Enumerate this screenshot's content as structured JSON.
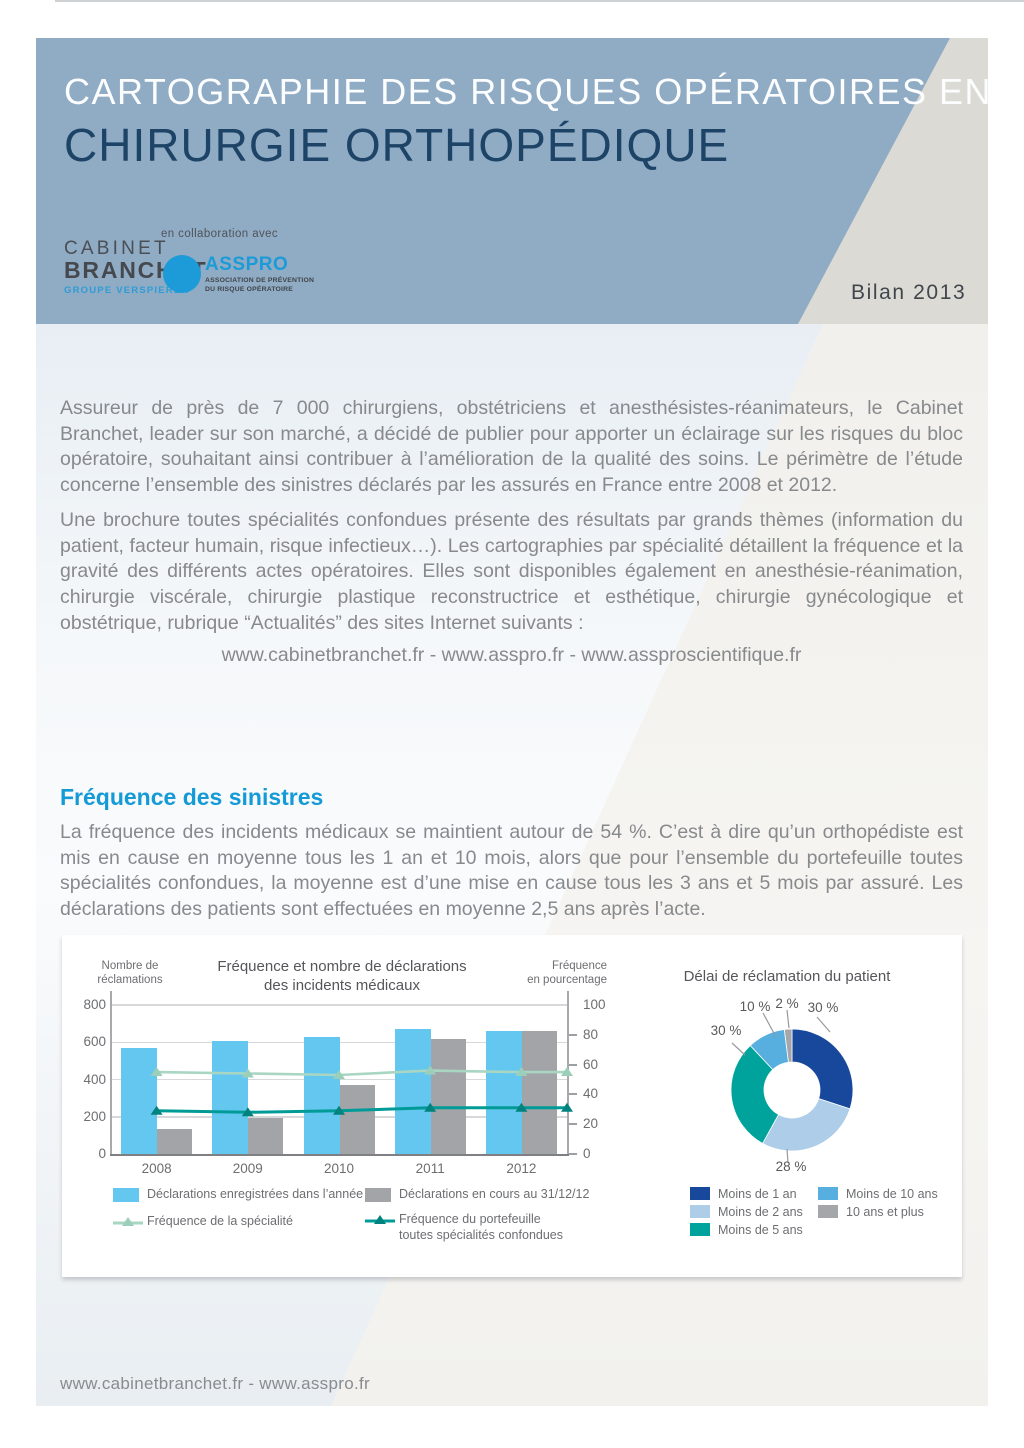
{
  "header": {
    "title_line1": "CARTOGRAPHIE DES RISQUES OPÉRATOIRES EN",
    "title_line2": "CHIRURGIE ORTHOPÉDIQUE",
    "collab_label": "en collaboration avec",
    "badge": "Bilan 2013",
    "cabinet_logo": {
      "line1": "CABINET",
      "line2": "BRANCHET",
      "line3": "GROUPE VERSPIEREN"
    },
    "asspro_logo": {
      "name": "ASSPRO",
      "sub1": "ASSOCIATION DE PRÉVENTION",
      "sub2": "DU RISQUE OPÉRATOIRE"
    }
  },
  "intro": {
    "p1": "Assureur de près de 7 000 chirurgiens, obstétriciens et anesthésistes-réanimateurs, le Cabinet Branchet, leader sur son marché, a décidé de publier pour apporter un éclairage sur les risques du bloc opératoire, souhaitant ainsi contribuer à l’amélioration de la qualité des soins. Le périmètre de l’étude concerne l’ensemble des sinistres déclarés par les assurés en France entre 2008 et 2012.",
    "p2": "Une brochure toutes spécialités confondues présente des résultats par grands thèmes (information du patient, facteur humain, risque infectieux…). Les cartographies par spécialité détaillent la fréquence et la gravité des différents actes opératoires. Elles sont disponibles également en anesthésie-réanimation, chirurgie viscérale, chirurgie plastique reconstructrice et esthétique, chirurgie gynécologique et obstétrique, rubrique “Actualités” des sites Internet suivants :",
    "links_line": "www.cabinetbranchet.fr - www.asspro.fr - www.assproscientifique.fr"
  },
  "frequency_section": {
    "heading": "Fréquence des sinistres",
    "paragraph": "La fréquence des incidents médicaux se maintient autour de 54 %. C’est à dire  qu’un orthopédiste est mis en cause en moyenne tous les 1 an et 10 mois, alors que pour l’ensemble du portefeuille toutes spécialités confondues, la moyenne est d’une mise en cause tous les 3 ans et 5 mois par assuré. Les déclarations des patients sont effectuées en moyenne 2,5 ans après l’acte."
  },
  "footer": {
    "links": "www.cabinetbranchet.fr - www.asspro.fr"
  },
  "colors": {
    "header_blue": "#90abc4",
    "header_beige": "#dbdad4",
    "accent_blue": "#149ad7",
    "bar_blue": "#63c7ef",
    "bar_gray": "#a2a4a7",
    "line_specialty": "#a9d6c2",
    "line_portfolio": "#009b96"
  },
  "chart_data": [
    {
      "type": "bar",
      "title": "Fréquence et nombre de déclarations des incidents médicaux",
      "title_lines": [
        "Fréquence et nombre de déclarations",
        "des incidents médicaux"
      ],
      "left_axis_title": [
        "Nombre de",
        "réclamations"
      ],
      "right_axis_title": [
        "Fréquence",
        "en pourcentage"
      ],
      "categories": [
        "2008",
        "2009",
        "2010",
        "2011",
        "2012"
      ],
      "left_axis": {
        "ticks": [
          0,
          200,
          400,
          600,
          800
        ],
        "max": 800
      },
      "right_axis": {
        "ticks": [
          0,
          20,
          40,
          60,
          80,
          100
        ],
        "max": 100
      },
      "grid": true,
      "legend_position": "bottom",
      "series": [
        {
          "name": "Déclarations enregistrées dans l’année",
          "type": "bar",
          "axis": "left",
          "color": "#63c7ef",
          "values": [
            570,
            605,
            630,
            670,
            660
          ]
        },
        {
          "name": "Déclarations en cours au 31/12/12",
          "type": "bar",
          "axis": "left",
          "color": "#a2a4a7",
          "values": [
            135,
            195,
            370,
            620,
            660
          ]
        },
        {
          "name": "Fréquence de la spécialité",
          "type": "line",
          "axis": "right",
          "color": "#a9d6c2",
          "marker_color": "#9ccfba",
          "values": [
            55,
            54,
            53,
            56,
            55
          ]
        },
        {
          "name": "Fréquence du portefeuille toutes spécialités confondues",
          "type": "line",
          "axis": "right",
          "color": "#009b96",
          "marker_color": "#00827e",
          "values": [
            29,
            28,
            29,
            31,
            31
          ],
          "legend_lines": [
            "Fréquence du portefeuille",
            "toutes spécialités confondues"
          ]
        }
      ]
    },
    {
      "type": "pie",
      "donut": true,
      "title": "Délai de réclamation du patient",
      "segments": [
        {
          "label": "Moins de 1 an",
          "pct": 30,
          "color": "#17489b"
        },
        {
          "label": "Moins de 2 ans",
          "pct": 28,
          "color": "#aecde9"
        },
        {
          "label": "Moins de 5 ans",
          "pct": 30,
          "color": "#00a39b"
        },
        {
          "label": "Moins de 10 ans",
          "pct": 10,
          "color": "#57afe0"
        },
        {
          "label": "10 ans et plus",
          "pct": 2,
          "color": "#a4a6a9"
        }
      ]
    }
  ]
}
